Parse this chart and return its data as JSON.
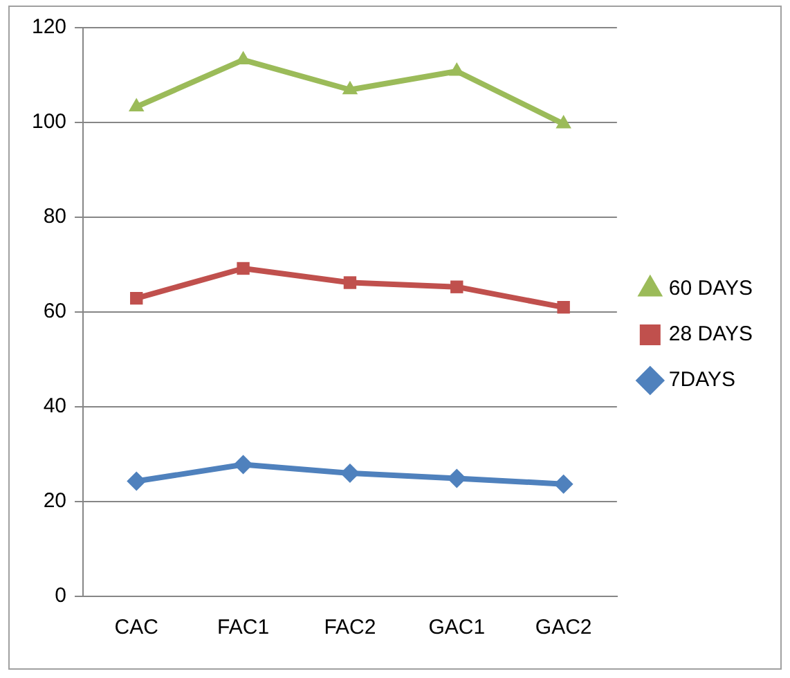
{
  "chart_data": {
    "type": "line",
    "categories": [
      "CAC",
      "FAC1",
      "FAC2",
      "GAC1",
      "GAC2"
    ],
    "series": [
      {
        "name": "60 DAYS",
        "color": "#9bbb59",
        "marker": "triangle",
        "values": [
          103.3,
          113.2,
          106.9,
          110.8,
          99.7
        ]
      },
      {
        "name": "28 DAYS",
        "color": "#c0504d",
        "marker": "square",
        "values": [
          62.9,
          69.2,
          66.2,
          65.3,
          61
        ]
      },
      {
        "name": "7DAYS",
        "color": "#4f81bd",
        "marker": "diamond",
        "values": [
          24.3,
          27.8,
          26,
          24.9,
          23.7
        ]
      }
    ],
    "ylim": [
      0,
      120
    ],
    "yticks": [
      0,
      20,
      40,
      60,
      80,
      100,
      120
    ],
    "grid": "y",
    "legend": "right"
  }
}
